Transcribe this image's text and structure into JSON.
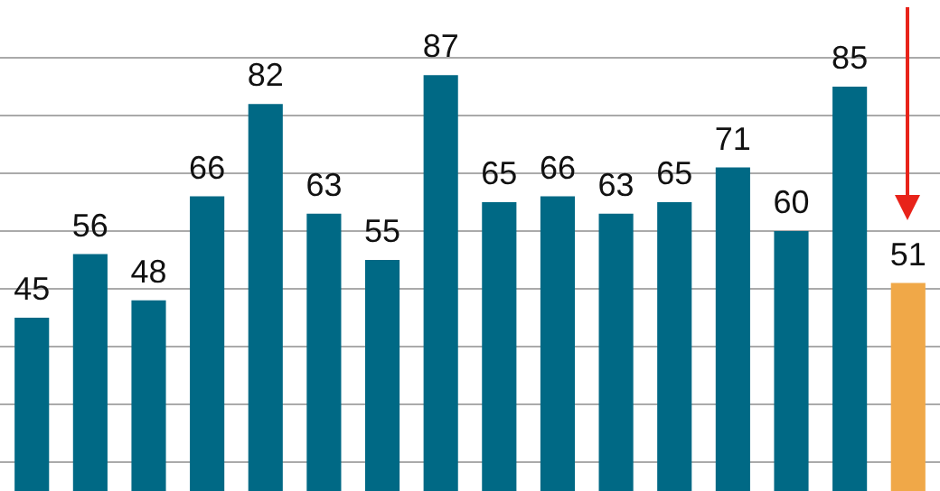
{
  "chart_data": {
    "type": "bar",
    "categories": [
      null,
      null,
      null,
      null,
      null,
      null,
      null,
      null,
      null,
      null,
      null,
      null,
      null,
      null,
      null,
      null
    ],
    "values": [
      45,
      56,
      48,
      66,
      82,
      63,
      55,
      87,
      65,
      66,
      63,
      65,
      71,
      60,
      85,
      51
    ],
    "colors": [
      "#006985",
      "#006985",
      "#006985",
      "#006985",
      "#006985",
      "#006985",
      "#006985",
      "#006985",
      "#006985",
      "#006985",
      "#006985",
      "#006985",
      "#006985",
      "#006985",
      "#006985",
      "#f0a848"
    ],
    "ylim": [
      15,
      100
    ],
    "yticks": [
      {
        "value": 20,
        "label": null
      },
      {
        "value": 30,
        "label": null
      },
      {
        "value": 40,
        "label": null
      },
      {
        "value": 50,
        "label": null
      },
      {
        "value": 60,
        "label": null
      },
      {
        "value": 70,
        "label": null
      },
      {
        "value": 80,
        "label": null
      },
      {
        "value": 90,
        "label": null
      }
    ],
    "grid": true,
    "data_labels": true
  }
}
